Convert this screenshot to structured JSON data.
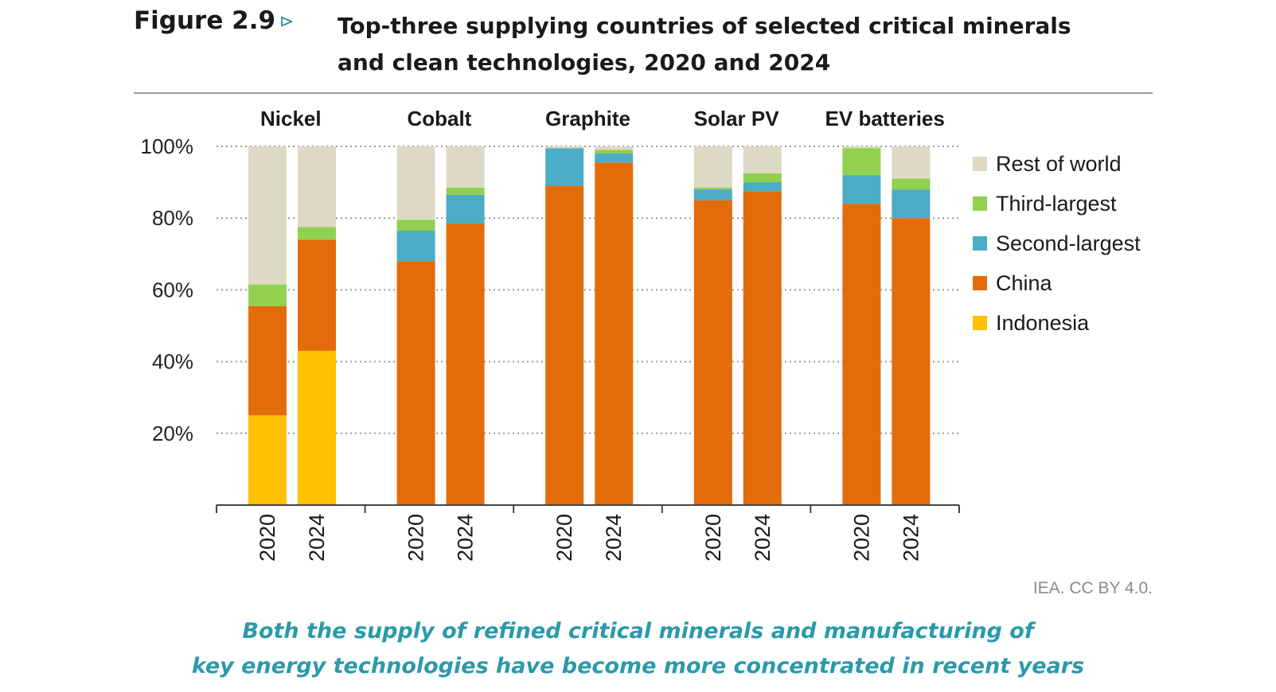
{
  "figure": {
    "label": "Figure 2.9",
    "arrow": "⊳",
    "title": "Top-three supplying countries of selected critical minerals and clean technologies, 2020 and 2024",
    "credit": "IEA. CC BY 4.0.",
    "subtitle_line1": "Both the supply of refined critical minerals and manufacturing of",
    "subtitle_line2": "key energy technologies have become more concentrated in recent years"
  },
  "colors": {
    "Indonesia": "#ffc000",
    "China": "#e36c0a",
    "Second-largest": "#4bacc6",
    "Third-largest": "#92d050",
    "Rest of world": "#ddd9c4"
  },
  "chart_data": {
    "type": "bar",
    "stacked": true,
    "ylim": [
      0,
      100
    ],
    "yticks": [
      "20%",
      "40%",
      "60%",
      "80%",
      "100%"
    ],
    "ytick_values": [
      20,
      40,
      60,
      80,
      100
    ],
    "grid": true,
    "legend_position": "right",
    "legend": [
      "Rest of world",
      "Third-largest",
      "Second-largest",
      "China",
      "Indonesia"
    ],
    "groups": [
      {
        "name": "Nickel",
        "bars": [
          {
            "year": "2020",
            "Indonesia": 25,
            "China": 30.5,
            "Second-largest": 0,
            "Third-largest": 6,
            "Rest of world": 38.5
          },
          {
            "year": "2024",
            "Indonesia": 43,
            "China": 31,
            "Second-largest": 0,
            "Third-largest": 3.5,
            "Rest of world": 22.5
          }
        ]
      },
      {
        "name": "Cobalt",
        "bars": [
          {
            "year": "2020",
            "Indonesia": 0,
            "China": 68,
            "Second-largest": 8.5,
            "Third-largest": 3,
            "Rest of world": 20.5
          },
          {
            "year": "2024",
            "Indonesia": 0,
            "China": 78.5,
            "Second-largest": 8,
            "Third-largest": 2,
            "Rest of world": 11.5
          }
        ]
      },
      {
        "name": "Graphite",
        "bars": [
          {
            "year": "2020",
            "Indonesia": 0,
            "China": 89,
            "Second-largest": 10.5,
            "Third-largest": 0,
            "Rest of world": 0.5
          },
          {
            "year": "2024",
            "Indonesia": 0,
            "China": 95.5,
            "Second-largest": 2.5,
            "Third-largest": 1,
            "Rest of world": 1
          }
        ]
      },
      {
        "name": "Solar PV",
        "bars": [
          {
            "year": "2020",
            "Indonesia": 0,
            "China": 85,
            "Second-largest": 3,
            "Third-largest": 0.5,
            "Rest of world": 11.5
          },
          {
            "year": "2024",
            "Indonesia": 0,
            "China": 87.5,
            "Second-largest": 2.5,
            "Third-largest": 2.5,
            "Rest of world": 7.5
          }
        ]
      },
      {
        "name": "EV batteries",
        "bars": [
          {
            "year": "2020",
            "Indonesia": 0,
            "China": 84,
            "Second-largest": 8,
            "Third-largest": 7.5,
            "Rest of world": 0.5
          },
          {
            "year": "2024",
            "Indonesia": 0,
            "China": 80,
            "Second-largest": 8,
            "Third-largest": 3,
            "Rest of world": 9
          }
        ]
      }
    ]
  }
}
